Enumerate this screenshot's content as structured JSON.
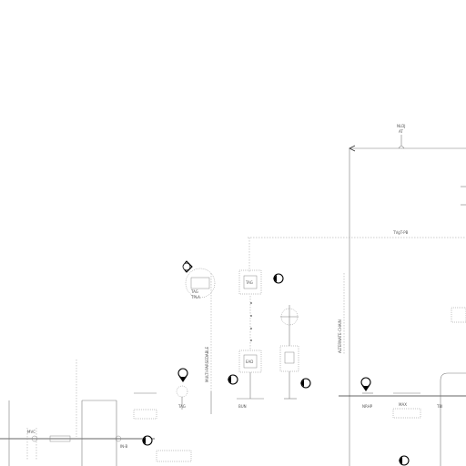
{
  "diagram": {
    "labels": {
      "top_tag": "NLDJ",
      "top_tag_sub": "AT",
      "header_line": "TVgT-PB",
      "left_tag_a": "TAG",
      "left_tag_b": "TPLA",
      "center_tag_a": "TAG",
      "center_tag_b": "EAD",
      "bottom_tag_a": "TAG",
      "bottom_tag_b": "BUN",
      "bottom_tag_c": "MAX",
      "bottom_tag_d": "NRHP",
      "bottom_tag_e": "TBI",
      "vertical_text_left": "MULTI-PARSEDABLE",
      "vertical_text_right": "ALTERNATE-CHAIN",
      "left_box_label": "IN-B",
      "left_pipe_label": "MVC"
    },
    "callouts": [
      {
        "id": "A"
      },
      {
        "id": "B"
      },
      {
        "id": "C"
      },
      {
        "id": "D"
      },
      {
        "id": "E"
      },
      {
        "id": "F"
      },
      {
        "id": "G"
      },
      {
        "id": "H"
      },
      {
        "id": "I"
      }
    ]
  }
}
